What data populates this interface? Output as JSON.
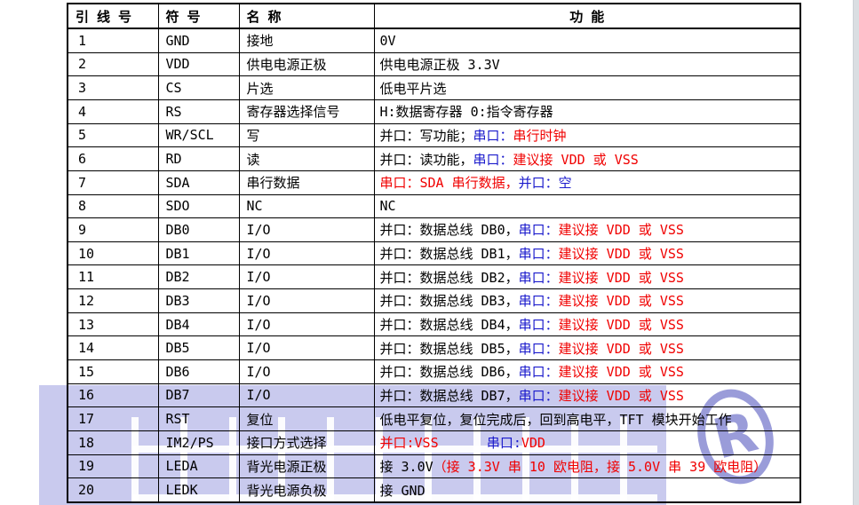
{
  "colors": {
    "black": "#000000",
    "red": "#f00000",
    "blue": "#1a1acc",
    "lavender": "#c9caee",
    "watermark_stroke": "#9a9cd9"
  },
  "watermark": {
    "registered_label": "R"
  },
  "table": {
    "headers": [
      "引 线 号",
      "符 号",
      "名 称",
      "功 能"
    ],
    "rows": [
      {
        "pin": "1",
        "symbol": "GND",
        "name": "接地",
        "func": [
          {
            "text": "0V",
            "color": "black"
          }
        ]
      },
      {
        "pin": "2",
        "symbol": "VDD",
        "name": "供电电源正极",
        "func": [
          {
            "text": "供电电源正极 3.3V",
            "color": "black"
          }
        ]
      },
      {
        "pin": "3",
        "symbol": "CS",
        "name": "片选",
        "func": [
          {
            "text": "低电平片选",
            "color": "black"
          }
        ]
      },
      {
        "pin": "4",
        "symbol": "RS",
        "name": "寄存器选择信号",
        "func": [
          {
            "text": "H:数据寄存器 0:指令寄存器",
            "color": "black"
          }
        ]
      },
      {
        "pin": "5",
        "symbol": "WR/SCL",
        "name": "写",
        "func": [
          {
            "text": "并口：写功能；",
            "color": "black"
          },
          {
            "text": "串口：",
            "color": "blue"
          },
          {
            "text": "串行时钟",
            "color": "red"
          }
        ]
      },
      {
        "pin": "6",
        "symbol": "RD",
        "name": "读",
        "func": [
          {
            "text": "并口：读功能，",
            "color": "black"
          },
          {
            "text": "串口：",
            "color": "blue"
          },
          {
            "text": "建议接 VDD 或 VSS",
            "color": "red"
          }
        ]
      },
      {
        "pin": "7",
        "symbol": "SDA",
        "name": "串行数据",
        "func": [
          {
            "text": "串口：SDA 串行数据，",
            "color": "red"
          },
          {
            "text": "并口：空",
            "color": "blue"
          }
        ]
      },
      {
        "pin": "8",
        "symbol": "SDO",
        "name": "NC",
        "func": [
          {
            "text": "NC",
            "color": "black"
          }
        ]
      },
      {
        "pin": "9",
        "symbol": "DB0",
        "name": "I/O",
        "func": [
          {
            "text": "并口：数据总线 DB0，",
            "color": "black"
          },
          {
            "text": "串口：",
            "color": "blue"
          },
          {
            "text": "建议接 VDD 或 VSS",
            "color": "red"
          }
        ]
      },
      {
        "pin": "10",
        "symbol": "DB1",
        "name": "I/O",
        "func": [
          {
            "text": "并口：数据总线 DB1，",
            "color": "black"
          },
          {
            "text": "串口：",
            "color": "blue"
          },
          {
            "text": "建议接 VDD 或 VSS",
            "color": "red"
          }
        ]
      },
      {
        "pin": "11",
        "symbol": "DB2",
        "name": "I/O",
        "func": [
          {
            "text": "并口：数据总线 DB2，",
            "color": "black"
          },
          {
            "text": "串口：",
            "color": "blue"
          },
          {
            "text": "建议接 VDD 或 VSS",
            "color": "red"
          }
        ]
      },
      {
        "pin": "12",
        "symbol": "DB3",
        "name": "I/O",
        "func": [
          {
            "text": "并口：数据总线 DB3，",
            "color": "black"
          },
          {
            "text": "串口：",
            "color": "blue"
          },
          {
            "text": "建议接 VDD 或 VSS",
            "color": "red"
          }
        ]
      },
      {
        "pin": "13",
        "symbol": "DB4",
        "name": "I/O",
        "func": [
          {
            "text": "并口：数据总线 DB4，",
            "color": "black"
          },
          {
            "text": "串口：",
            "color": "blue"
          },
          {
            "text": "建议接 VDD 或 VSS",
            "color": "red"
          }
        ]
      },
      {
        "pin": "14",
        "symbol": "DB5",
        "name": "I/O",
        "func": [
          {
            "text": "并口：数据总线 DB5，",
            "color": "black"
          },
          {
            "text": "串口：",
            "color": "blue"
          },
          {
            "text": "建议接 VDD 或 VSS",
            "color": "red"
          }
        ]
      },
      {
        "pin": "15",
        "symbol": "DB6",
        "name": "I/O",
        "func": [
          {
            "text": "并口：数据总线 DB6，",
            "color": "black"
          },
          {
            "text": "串口：",
            "color": "blue"
          },
          {
            "text": "建议接 VDD 或 VSS",
            "color": "red"
          }
        ]
      },
      {
        "pin": "16",
        "symbol": "DB7",
        "name": "I/O",
        "func": [
          {
            "text": "并口：数据总线 DB7，",
            "color": "black"
          },
          {
            "text": "串口：",
            "color": "blue"
          },
          {
            "text": "建议接 VDD 或 VSS",
            "color": "red"
          }
        ]
      },
      {
        "pin": "17",
        "symbol": "RST",
        "name": "复位",
        "func": [
          {
            "text": "低电平复位，复位完成后，回到高电平，TFT 模块开始工作",
            "color": "black"
          }
        ]
      },
      {
        "pin": "18",
        "symbol": "IM2/PS",
        "name": "接口方式选择",
        "func": [
          {
            "text": "并口:VSS",
            "color": "red"
          },
          {
            "text": "      ",
            "color": "black"
          },
          {
            "text": "串口:",
            "color": "blue"
          },
          {
            "text": "VDD",
            "color": "red"
          }
        ]
      },
      {
        "pin": "19",
        "symbol": "LEDA",
        "name": "背光电源正极",
        "func": [
          {
            "text": "接 3.0V",
            "color": "black"
          },
          {
            "text": "（接 3.3V 串 10 欧电阻，接 5.0V 串 39 欧电阻）",
            "color": "red"
          }
        ]
      },
      {
        "pin": "20",
        "symbol": "LEDK",
        "name": "背光电源负极",
        "func": [
          {
            "text": "接 GND",
            "color": "black"
          }
        ]
      }
    ]
  }
}
